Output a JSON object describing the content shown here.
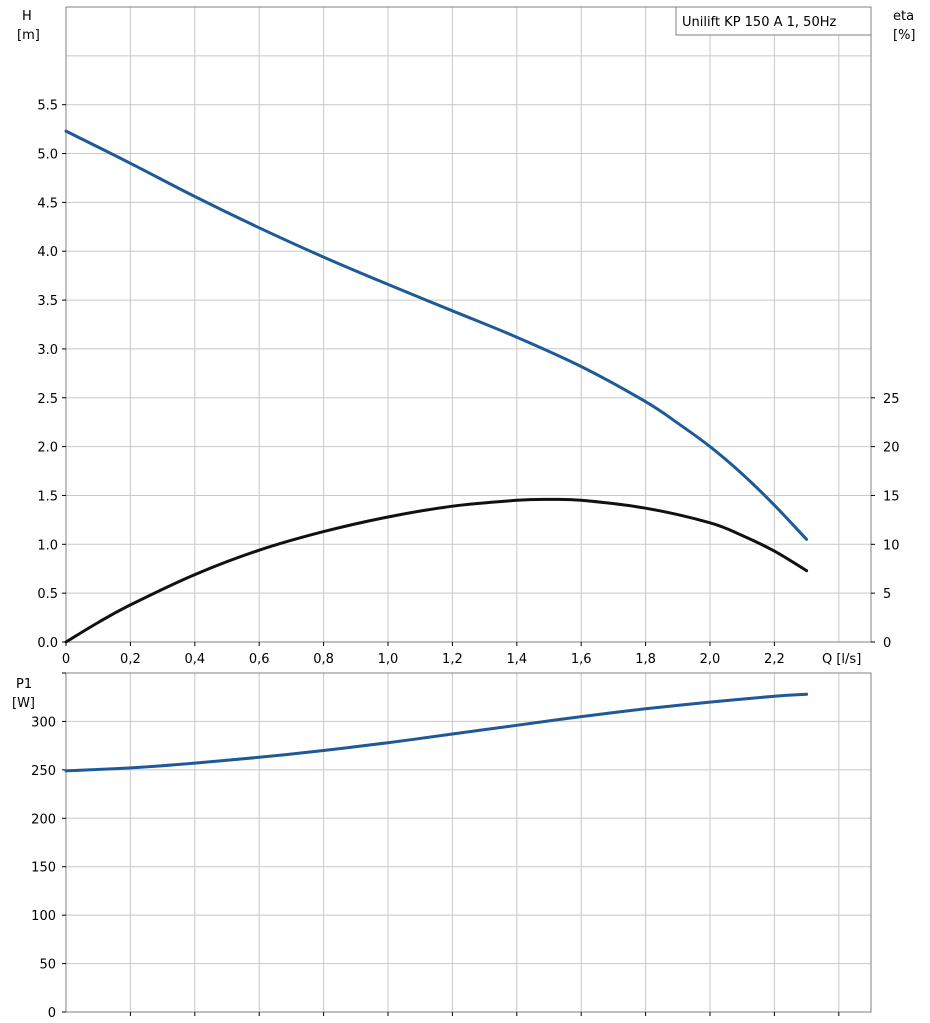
{
  "chart_data": [
    {
      "type": "line",
      "title": "Unilift KP 150 A 1, 50Hz",
      "xlabel": "Q [l/s]",
      "ylabel_left_name": "H",
      "ylabel_left_unit": "[m]",
      "ylabel_right_name": "eta",
      "ylabel_right_unit": "[%]",
      "xlim": [
        0,
        2.5
      ],
      "ylim_left": [
        0,
        6.5
      ],
      "ylim_right": [
        0,
        65
      ],
      "x_ticks": [
        0,
        0.2,
        0.4,
        0.6,
        0.8,
        1.0,
        1.2,
        1.4,
        1.6,
        1.8,
        2.0,
        2.2
      ],
      "x_tick_labels": [
        "0",
        "0,2",
        "0,4",
        "0,6",
        "0,8",
        "1,0",
        "1,2",
        "1,4",
        "1,6",
        "1,8",
        "2,0",
        "2,2"
      ],
      "y_left_tick_labels": [
        "0.0",
        "0.5",
        "1.0",
        "1.5",
        "2.0",
        "2.5",
        "3.0",
        "3.5",
        "4.0",
        "4.5",
        "5.0",
        "5.5"
      ],
      "y_right_tick_labels": [
        "0",
        "5",
        "10",
        "15",
        "20",
        "25"
      ],
      "grid": true,
      "legend_position": "top-right",
      "series": [
        {
          "name": "",
          "axis": "left",
          "color": "#1f5a96",
          "x": [
            0,
            0.2,
            0.4,
            0.6,
            0.8,
            1.0,
            1.2,
            1.4,
            1.6,
            1.8,
            1.9,
            2.0,
            2.1,
            2.2,
            2.3
          ],
          "y": [
            5.23,
            4.9,
            4.56,
            4.24,
            3.94,
            3.66,
            3.39,
            3.12,
            2.82,
            2.46,
            2.24,
            2.0,
            1.72,
            1.4,
            1.05
          ]
        },
        {
          "name": "",
          "axis": "right",
          "color": "#111111",
          "x": [
            0,
            0.1,
            0.2,
            0.4,
            0.6,
            0.8,
            1.0,
            1.2,
            1.4,
            1.5,
            1.6,
            1.8,
            2.0,
            2.1,
            2.2,
            2.3
          ],
          "y": [
            0,
            2,
            3.8,
            6.9,
            9.4,
            11.3,
            12.8,
            13.9,
            14.5,
            14.6,
            14.5,
            13.7,
            12.2,
            10.9,
            9.3,
            7.3
          ]
        }
      ]
    },
    {
      "type": "line",
      "title": "",
      "xlabel": "",
      "ylabel_name": "P1",
      "ylabel_unit": "[W]",
      "xlim": [
        0,
        2.5
      ],
      "ylim": [
        0,
        350
      ],
      "y_ticks": [
        0,
        50,
        100,
        150,
        200,
        250,
        300
      ],
      "y_tick_labels": [
        "0",
        "50",
        "100",
        "150",
        "200",
        "250",
        "300"
      ],
      "grid": true,
      "series": [
        {
          "name": "",
          "color": "#1f5a96",
          "x": [
            0,
            0.2,
            0.4,
            0.6,
            0.8,
            1.0,
            1.2,
            1.4,
            1.6,
            1.8,
            2.0,
            2.2,
            2.3
          ],
          "y": [
            249,
            252,
            257,
            263,
            270,
            278,
            287,
            296,
            305,
            313,
            320,
            326,
            328
          ]
        }
      ]
    }
  ]
}
